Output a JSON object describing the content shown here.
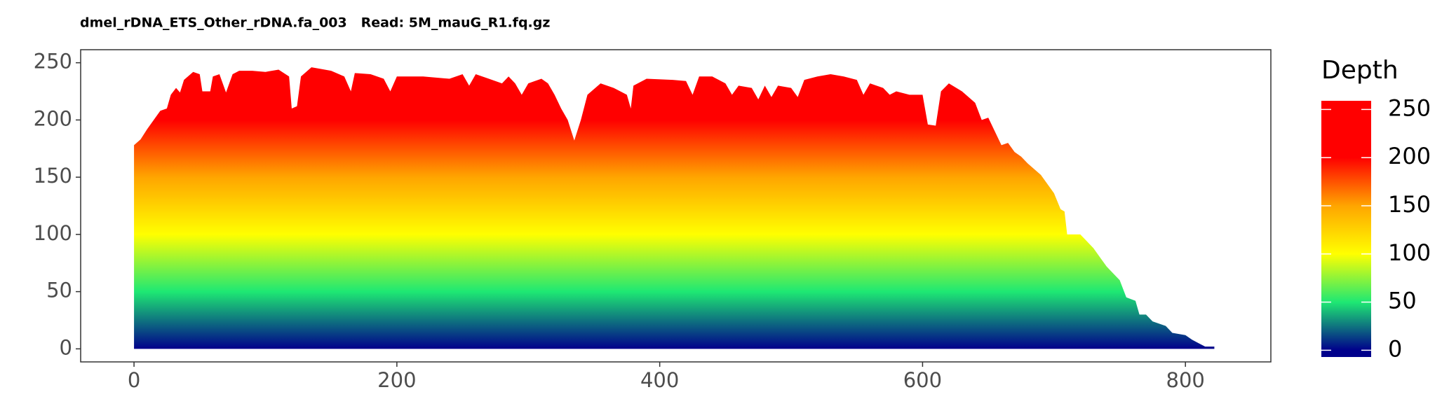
{
  "chart_data": {
    "type": "area",
    "title": "dmel_rDNA_ETS_Other_rDNA.fa_003   Read: 5M_mauG_R1.fq.gz",
    "x": [
      0,
      5,
      10,
      15,
      20,
      25,
      28,
      32,
      35,
      38,
      45,
      50,
      52,
      58,
      60,
      65,
      70,
      75,
      80,
      90,
      100,
      110,
      118,
      120,
      124,
      127,
      135,
      140,
      150,
      160,
      165,
      168,
      180,
      190,
      195,
      200,
      220,
      240,
      250,
      255,
      260,
      270,
      280,
      285,
      290,
      295,
      300,
      310,
      315,
      320,
      325,
      330,
      335,
      340,
      345,
      355,
      365,
      375,
      378,
      380,
      390,
      410,
      420,
      425,
      430,
      440,
      450,
      455,
      460,
      470,
      475,
      480,
      485,
      490,
      500,
      505,
      510,
      520,
      530,
      540,
      550,
      555,
      560,
      570,
      575,
      580,
      590,
      600,
      604,
      610,
      614,
      620,
      630,
      640,
      645,
      650,
      655,
      660,
      665,
      670,
      675,
      680,
      690,
      700,
      705,
      708,
      710,
      720,
      725,
      730,
      735,
      740,
      745,
      750,
      755,
      762,
      765,
      770,
      775,
      780,
      785,
      790,
      800,
      805,
      810,
      815,
      822
    ],
    "values": [
      178,
      183,
      192,
      200,
      208,
      210,
      222,
      228,
      224,
      235,
      242,
      240,
      225,
      225,
      238,
      240,
      224,
      240,
      243,
      243,
      242,
      244,
      238,
      210,
      212,
      238,
      246,
      245,
      243,
      238,
      225,
      241,
      240,
      236,
      225,
      238,
      238,
      236,
      240,
      230,
      240,
      236,
      232,
      238,
      232,
      222,
      232,
      236,
      232,
      222,
      210,
      200,
      182,
      200,
      222,
      232,
      228,
      222,
      210,
      230,
      236,
      235,
      234,
      222,
      238,
      238,
      232,
      222,
      230,
      228,
      218,
      230,
      220,
      230,
      228,
      220,
      235,
      238,
      240,
      238,
      235,
      222,
      232,
      228,
      222,
      225,
      222,
      222,
      196,
      195,
      225,
      232,
      225,
      215,
      200,
      202,
      190,
      178,
      180,
      172,
      168,
      162,
      152,
      136,
      122,
      120,
      100,
      100,
      94,
      88,
      80,
      72,
      66,
      60,
      45,
      42,
      30,
      30,
      24,
      22,
      20,
      14,
      12,
      8,
      5,
      2,
      2
    ],
    "xlim": [
      -40.6,
      865
    ],
    "ylim": [
      -11.4,
      261.4
    ],
    "xticks": [
      0,
      200,
      400,
      600,
      800
    ],
    "yticks": [
      0,
      50,
      100,
      150,
      200,
      250
    ],
    "color_scale": [
      {
        "value": 0,
        "color": "#00008b"
      },
      {
        "value": 50,
        "color": "#1ee873"
      },
      {
        "value": 100,
        "color": "#ffff00"
      },
      {
        "value": 150,
        "color": "#ffa500"
      },
      {
        "value": 200,
        "color": "#ff0000"
      },
      {
        "value": 250,
        "color": "#ff0000"
      }
    ],
    "legend": {
      "title": "Depth",
      "lim": [
        -7,
        259
      ],
      "ticks": [
        0,
        50,
        100,
        150,
        200,
        250
      ]
    }
  }
}
